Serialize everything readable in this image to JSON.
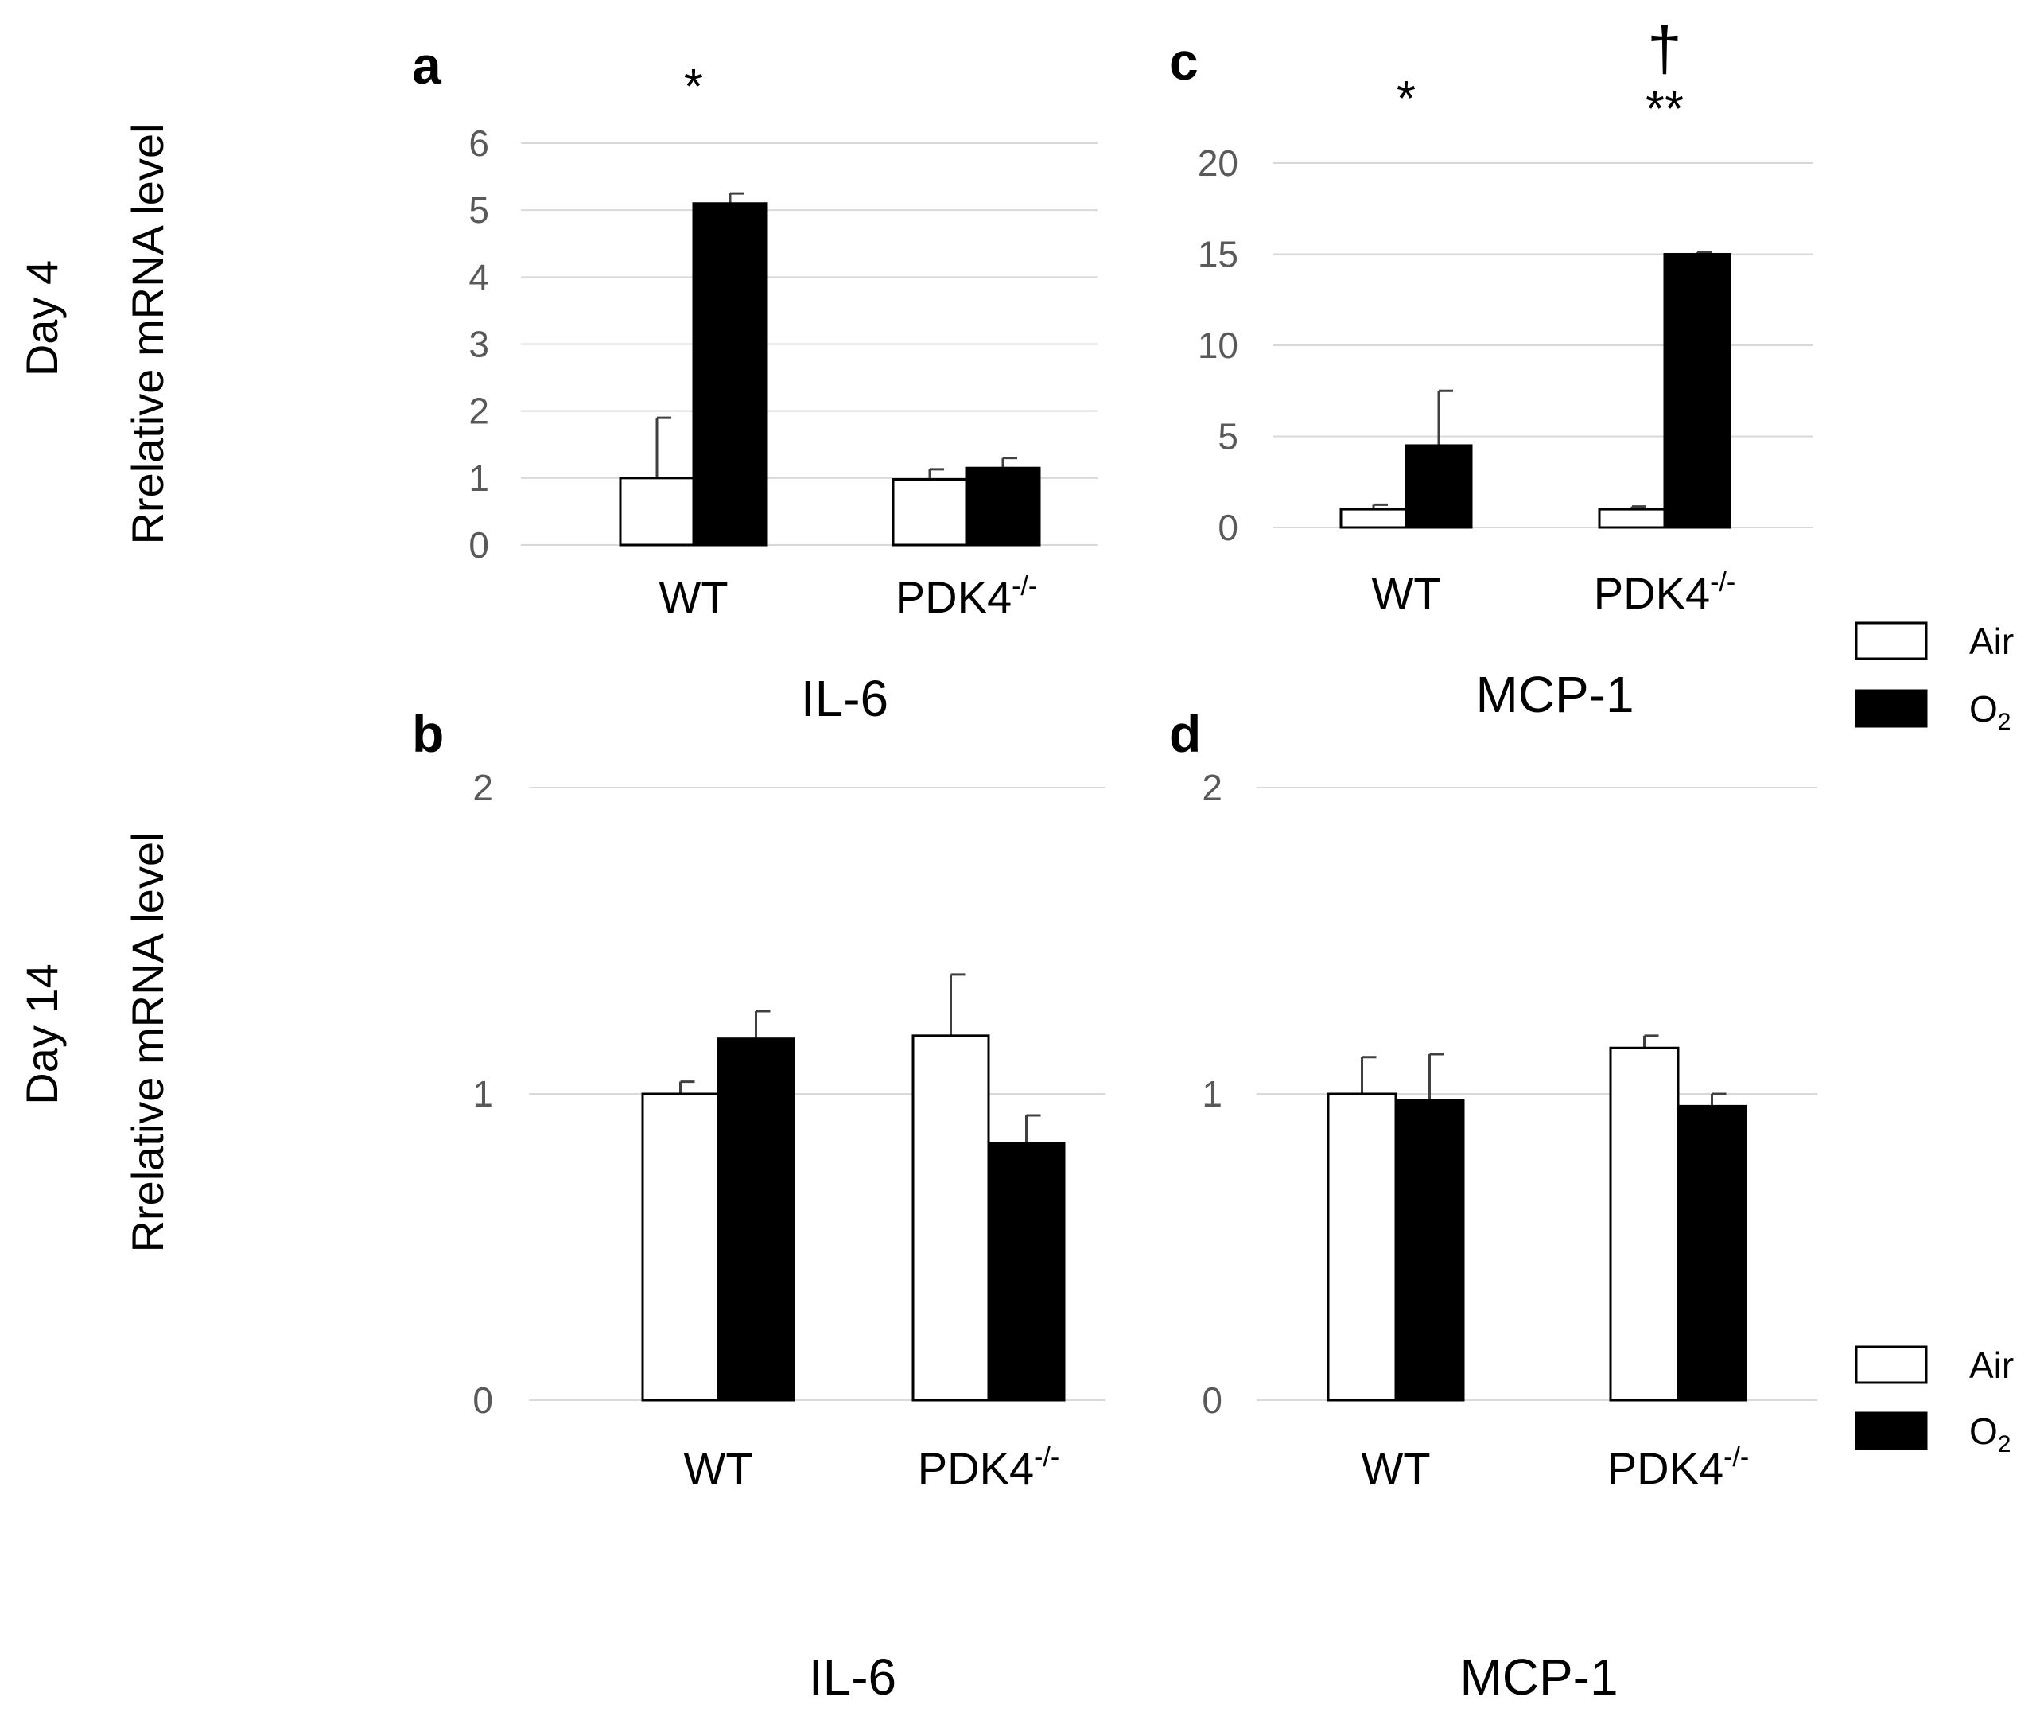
{
  "figure": {
    "row_labels": {
      "top": "Day 4",
      "bottom": "Day 14"
    },
    "ylabel": "Rrelative mRNA level",
    "legend": {
      "air": "Air",
      "o2_main": "O",
      "o2_sub": "2"
    },
    "colors": {
      "air": "#ffffff",
      "o2": "#000000",
      "grid": "#d9d9d9",
      "tick": "#595959"
    }
  },
  "chart_data": [
    {
      "panel": "a",
      "type": "bar",
      "title": "IL-6",
      "ylabel": "Rrelative mRNA level",
      "categories": [
        {
          "main": "WT",
          "sup": ""
        },
        {
          "main": "PDK4",
          "sup": "-/-"
        }
      ],
      "ylim": [
        0,
        6
      ],
      "yticks": [
        0,
        1,
        2,
        3,
        4,
        5,
        6
      ],
      "series": [
        {
          "name": "Air",
          "values": [
            1.0,
            0.98
          ],
          "errors": [
            0.9,
            0.15
          ]
        },
        {
          "name": "O2",
          "values": [
            5.1,
            1.15
          ],
          "errors": [
            0.15,
            0.15
          ]
        }
      ],
      "annotations": [
        {
          "text": "*",
          "category": 0
        }
      ]
    },
    {
      "panel": "b",
      "type": "bar",
      "title": "IL-6",
      "ylabel": "Rrelative mRNA level",
      "categories": [
        {
          "main": "WT",
          "sup": ""
        },
        {
          "main": "PDK4",
          "sup": "-/-"
        }
      ],
      "ylim": [
        0,
        2
      ],
      "yticks": [
        0,
        1,
        2
      ],
      "series": [
        {
          "name": "Air",
          "values": [
            1.0,
            1.19
          ],
          "errors": [
            0.04,
            0.2
          ]
        },
        {
          "name": "O2",
          "values": [
            1.18,
            0.84
          ],
          "errors": [
            0.09,
            0.09
          ]
        }
      ],
      "annotations": []
    },
    {
      "panel": "c",
      "type": "bar",
      "title": "MCP-1",
      "ylabel": "Rrelative mRNA level",
      "categories": [
        {
          "main": "WT",
          "sup": ""
        },
        {
          "main": "PDK4",
          "sup": "-/-"
        }
      ],
      "ylim": [
        0,
        20
      ],
      "yticks": [
        0,
        5,
        10,
        15,
        20
      ],
      "series": [
        {
          "name": "Air",
          "values": [
            1.0,
            1.0
          ],
          "errors": [
            0.25,
            0.15
          ]
        },
        {
          "name": "O2",
          "values": [
            4.5,
            15.0
          ],
          "errors": [
            3.0,
            0.1
          ]
        }
      ],
      "annotations": [
        {
          "text": "*",
          "category": 0
        },
        {
          "text": "**",
          "category": 1
        },
        {
          "text": "†",
          "category": 1
        }
      ]
    },
    {
      "panel": "d",
      "type": "bar",
      "title": "MCP-1",
      "ylabel": "Rrelative mRNA level",
      "categories": [
        {
          "main": "WT",
          "sup": ""
        },
        {
          "main": "PDK4",
          "sup": "-/-"
        }
      ],
      "ylim": [
        0,
        2
      ],
      "yticks": [
        0,
        1,
        2
      ],
      "series": [
        {
          "name": "Air",
          "values": [
            1.0,
            1.15
          ],
          "errors": [
            0.12,
            0.04
          ]
        },
        {
          "name": "O2",
          "values": [
            0.98,
            0.96
          ],
          "errors": [
            0.15,
            0.04
          ]
        }
      ],
      "annotations": []
    }
  ]
}
